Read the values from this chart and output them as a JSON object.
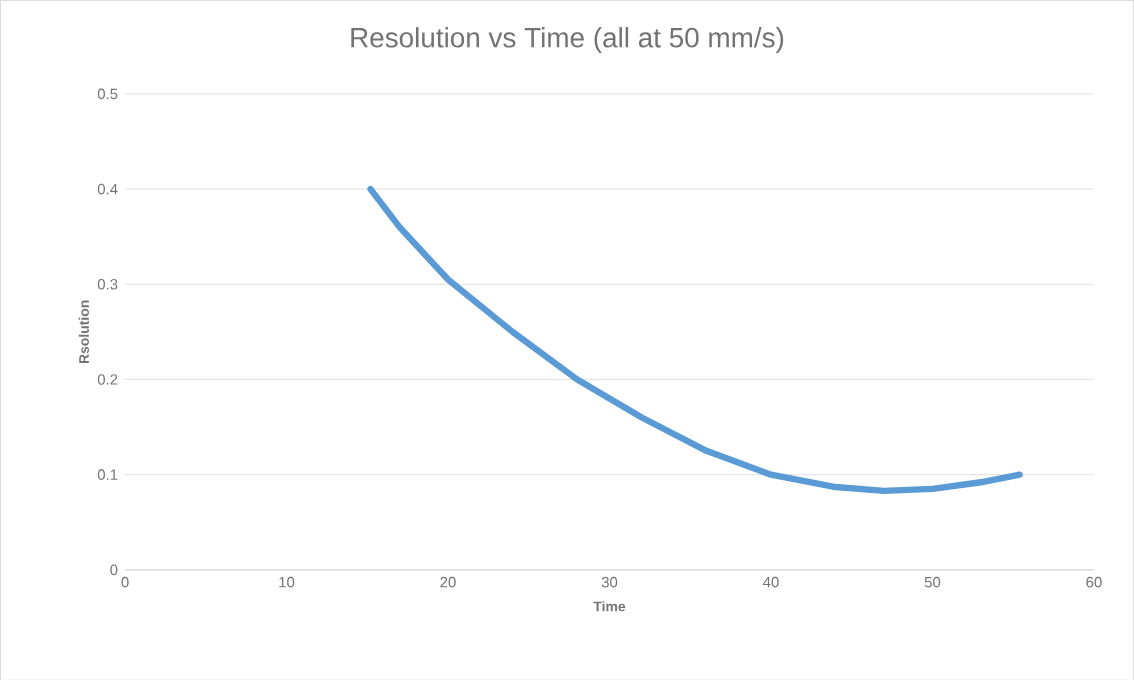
{
  "chart_data": {
    "type": "line",
    "title": "Resolution vs Time (all at 50 mm/s)",
    "xlabel": "Time",
    "ylabel": "Rsolution",
    "x": [
      15.2,
      17,
      20,
      24,
      28,
      32,
      36,
      40,
      44,
      47,
      50,
      53,
      55.4
    ],
    "series": [
      {
        "color": "#5b9bd5",
        "values": [
          0.4,
          0.36,
          0.305,
          0.25,
          0.2,
          0.16,
          0.125,
          0.1,
          0.087,
          0.083,
          0.085,
          0.092,
          0.1
        ]
      }
    ],
    "xlim": [
      0,
      60
    ],
    "ylim": [
      0,
      0.5
    ],
    "xticks": [
      0,
      10,
      20,
      30,
      40,
      50,
      60
    ],
    "yticks": [
      0,
      0.1,
      0.2,
      0.3,
      0.4,
      0.5
    ],
    "grid": "y",
    "marker": "none",
    "line_style": "solid"
  }
}
